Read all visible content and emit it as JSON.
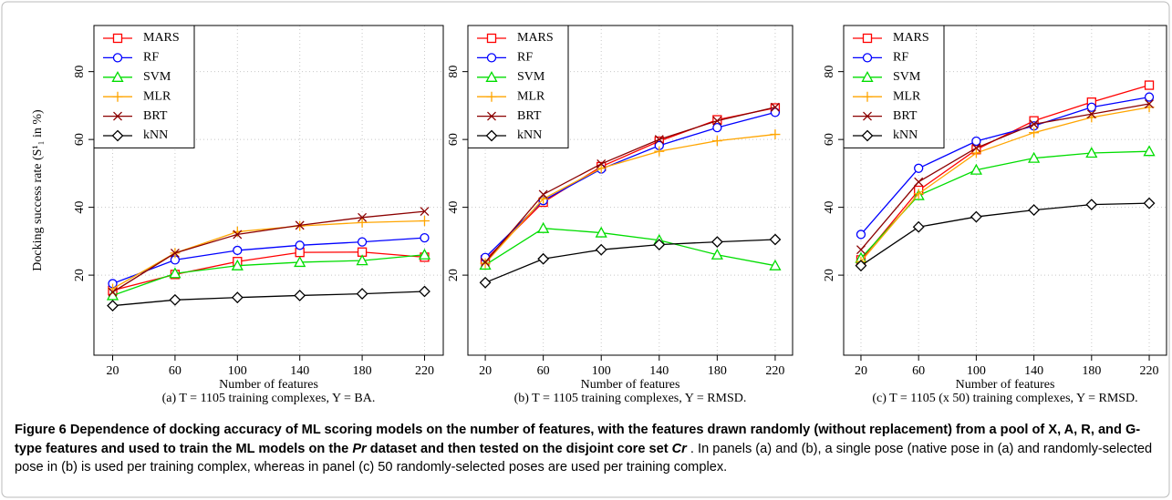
{
  "chart_data": [
    {
      "type": "line",
      "ylabel": "Docking success rate (S¹₁ in %)",
      "xlabel": "Number of features",
      "subtitle": "(a) T = 1105 training complexes, Y = BA.",
      "x": [
        20,
        60,
        100,
        140,
        180,
        220
      ],
      "xlim": [
        8,
        232
      ],
      "xticks": [
        20,
        60,
        100,
        140,
        180,
        220
      ],
      "ylim": [
        -3.6,
        93.6
      ],
      "yticks": [
        20,
        40,
        60,
        80
      ],
      "grid": true,
      "legend": "top-left",
      "series": [
        {
          "name": "MARS",
          "color": "#ff0000",
          "marker": "square",
          "values": [
            15.5,
            20.2,
            24,
            26.7,
            26.8,
            25.3
          ]
        },
        {
          "name": "RF",
          "color": "#0000ff",
          "marker": "circle",
          "values": [
            17.5,
            24.5,
            27.3,
            28.8,
            29.8,
            31
          ]
        },
        {
          "name": "SVM",
          "color": "#00dd00",
          "marker": "triangle",
          "values": [
            14,
            20.5,
            22.8,
            23.8,
            24.3,
            26
          ]
        },
        {
          "name": "MLR",
          "color": "#ffa500",
          "marker": "plus",
          "values": [
            16,
            26.5,
            32.8,
            34.5,
            35.5,
            36
          ]
        },
        {
          "name": "BRT",
          "color": "#8b0000",
          "marker": "cross",
          "values": [
            15,
            26.5,
            32,
            34.7,
            37,
            38.8
          ]
        },
        {
          "name": "kNN",
          "color": "#000000",
          "marker": "diamond",
          "values": [
            11,
            12.7,
            13.4,
            14,
            14.5,
            15.2
          ]
        }
      ]
    },
    {
      "type": "line",
      "xlabel": "Number of features",
      "subtitle": "(b) T = 1105 training complexes, Y = RMSD.",
      "x": [
        20,
        60,
        100,
        140,
        180,
        220
      ],
      "xlim": [
        8,
        232
      ],
      "xticks": [
        20,
        60,
        100,
        140,
        180,
        220
      ],
      "ylim": [
        -3.6,
        93.6
      ],
      "yticks": [
        20,
        40,
        60,
        80
      ],
      "grid": true,
      "legend": "top-left",
      "series": [
        {
          "name": "MARS",
          "color": "#ff0000",
          "marker": "square",
          "values": [
            24.5,
            41.5,
            52,
            59.5,
            65.8,
            69.3
          ]
        },
        {
          "name": "RF",
          "color": "#0000ff",
          "marker": "circle",
          "values": [
            25.2,
            42,
            51.3,
            58.2,
            63.5,
            68
          ]
        },
        {
          "name": "SVM",
          "color": "#00dd00",
          "marker": "triangle",
          "values": [
            23,
            33.8,
            32.5,
            30.3,
            26,
            22.8
          ]
        },
        {
          "name": "MLR",
          "color": "#ffa500",
          "marker": "plus",
          "values": [
            23.5,
            42.5,
            51.5,
            56.5,
            59.6,
            61.5
          ]
        },
        {
          "name": "BRT",
          "color": "#8b0000",
          "marker": "cross",
          "values": [
            23.8,
            43.8,
            52.8,
            60,
            65.5,
            69.5
          ]
        },
        {
          "name": "kNN",
          "color": "#000000",
          "marker": "diamond",
          "values": [
            17.8,
            24.8,
            27.5,
            29,
            29.8,
            30.5
          ]
        }
      ]
    },
    {
      "type": "line",
      "xlabel": "Number of features",
      "subtitle": "(c) T = 1105 (x 50) training complexes, Y = RMSD.",
      "x": [
        20,
        60,
        100,
        140,
        180,
        220
      ],
      "xlim": [
        8,
        232
      ],
      "xticks": [
        20,
        60,
        100,
        140,
        180,
        220
      ],
      "ylim": [
        -3.6,
        93.6
      ],
      "yticks": [
        20,
        40,
        60,
        80
      ],
      "grid": true,
      "legend": "top-left",
      "series": [
        {
          "name": "MARS",
          "color": "#ff0000",
          "marker": "square",
          "values": [
            24.5,
            45,
            57,
            65.5,
            71,
            76
          ]
        },
        {
          "name": "RF",
          "color": "#0000ff",
          "marker": "circle",
          "values": [
            32,
            51.5,
            59.5,
            64,
            69.5,
            72.5
          ]
        },
        {
          "name": "SVM",
          "color": "#00dd00",
          "marker": "triangle",
          "values": [
            25,
            43.5,
            51,
            54.5,
            56,
            56.5
          ]
        },
        {
          "name": "MLR",
          "color": "#ffa500",
          "marker": "plus",
          "values": [
            24,
            44,
            56,
            62,
            66.5,
            69.5
          ]
        },
        {
          "name": "BRT",
          "color": "#8b0000",
          "marker": "cross",
          "values": [
            27.5,
            47.5,
            57.5,
            64.5,
            67.5,
            70.5
          ]
        },
        {
          "name": "kNN",
          "color": "#000000",
          "marker": "diamond",
          "values": [
            22.8,
            34.2,
            37.2,
            39.2,
            40.8,
            41.2
          ]
        }
      ]
    }
  ],
  "caption": [
    {
      "style": "bold",
      "text": "Figure 6 Dependence of docking accuracy of ML scoring models on the number of features, with the features drawn randomly (without replacement) from a pool of X, A, R, and G-type features and used to train the ML models on the "
    },
    {
      "style": "bold-italic",
      "text": "Pr"
    },
    {
      "style": "bold",
      "text": " dataset and then tested on the disjoint core set "
    },
    {
      "style": "bold-italic",
      "text": "Cr"
    },
    {
      "style": "normal",
      "text": " . In panels (a) and (b), a single pose (native pose in (a) and randomly-selected pose in (b) is used per training complex, whereas in panel (c) 50 randomly-selected poses are used per training complex."
    }
  ]
}
